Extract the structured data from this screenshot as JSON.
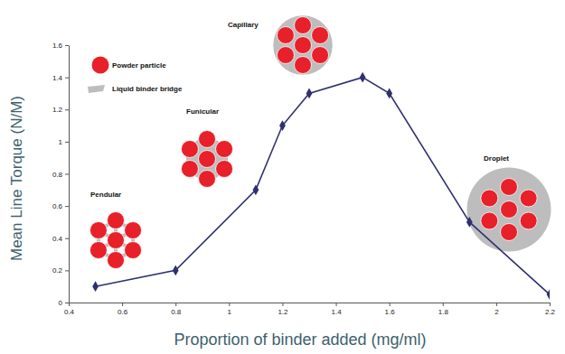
{
  "chart_data": {
    "type": "line",
    "x_label": "Proportion of binder added (mg/ml)",
    "y_label": "Mean Line Torque (N/M)",
    "x": [
      0.5,
      0.8,
      1.1,
      1.2,
      1.3,
      1.5,
      1.6,
      1.9,
      2.2
    ],
    "values": [
      0.1,
      0.2,
      0.7,
      1.1,
      1.3,
      1.4,
      1.3,
      0.5,
      0.05
    ],
    "color": "#2e3070",
    "marker": "diamond",
    "xlim": [
      0.4,
      2.2
    ],
    "xticks": [
      0.4,
      0.6,
      0.8,
      1,
      1.2,
      1.4,
      1.6,
      1.8,
      2,
      2.2
    ],
    "ylim": [
      0,
      1.6
    ],
    "yticks": [
      0,
      0.2,
      0.4,
      0.6,
      0.8,
      1,
      1.2,
      1.4,
      1.6
    ],
    "grid": false,
    "stage_labels": [
      "Pendular",
      "Funicular",
      "Capillary",
      "Droplet"
    ],
    "key_labels": [
      "Powder particle",
      "Liquid binder bridge"
    ]
  }
}
